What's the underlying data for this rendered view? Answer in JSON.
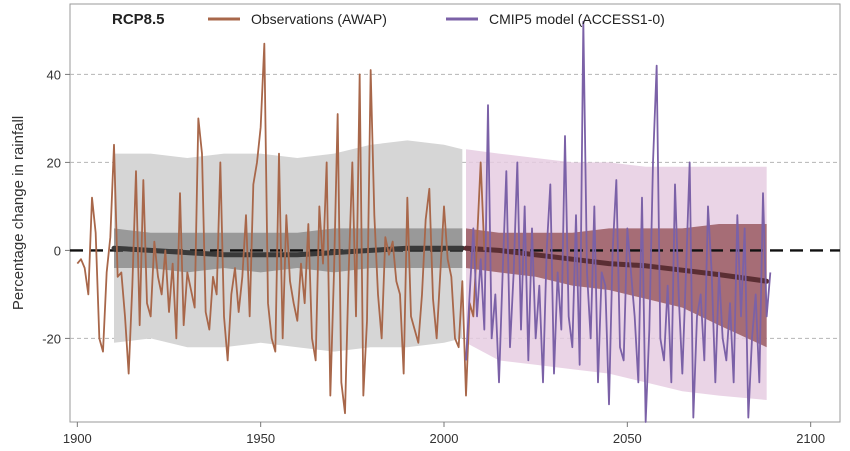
{
  "chart_data": {
    "type": "line",
    "title": "RCP8.5",
    "xlabel": "",
    "ylabel": "Percentage change in rainfall",
    "xlim": [
      1898,
      2108
    ],
    "ylim": [
      -39,
      56
    ],
    "x_ticks": [
      1900,
      1950,
      2000,
      2050,
      2100
    ],
    "y_ticks": [
      40,
      20,
      0,
      -20
    ],
    "y_tick_labels": [
      "40",
      "20",
      "0",
      "-20"
    ],
    "grid": "horizontal dashed at 40, 20, -20",
    "zero_line": "black dashed at 0",
    "legend": {
      "placement": "top",
      "entries": [
        "Observations (AWAP)",
        "CMIP5 model (ACCESS1-0)"
      ]
    },
    "colors": {
      "observations": "#a8674a",
      "model": "#7b61a7",
      "hist_band_outer": "#d6d6d6",
      "hist_band_inner": "#8e8e8e",
      "hist_median": "#3a3a3a",
      "proj_band_outer": "#e6cde2",
      "proj_band_inner": "#9a5a62",
      "proj_median": "#5b2e33"
    },
    "series": [
      {
        "name": "Observations (AWAP)",
        "x": [
          1900,
          1901,
          1902,
          1903,
          1904,
          1905,
          1906,
          1907,
          1908,
          1909,
          1910,
          1911,
          1912,
          1913,
          1914,
          1915,
          1916,
          1917,
          1918,
          1919,
          1920,
          1921,
          1922,
          1923,
          1924,
          1925,
          1926,
          1927,
          1928,
          1929,
          1930,
          1931,
          1932,
          1933,
          1934,
          1935,
          1936,
          1937,
          1938,
          1939,
          1940,
          1941,
          1942,
          1943,
          1944,
          1945,
          1946,
          1947,
          1948,
          1949,
          1950,
          1951,
          1952,
          1953,
          1954,
          1955,
          1956,
          1957,
          1958,
          1959,
          1960,
          1961,
          1962,
          1963,
          1964,
          1965,
          1966,
          1967,
          1968,
          1969,
          1970,
          1971,
          1972,
          1973,
          1974,
          1975,
          1976,
          1977,
          1978,
          1979,
          1980,
          1981,
          1982,
          1983,
          1984,
          1985,
          1986,
          1987,
          1988,
          1989,
          1990,
          1991,
          1992,
          1993,
          1994,
          1995,
          1996,
          1997,
          1998,
          1999,
          2000,
          2001,
          2002,
          2003,
          2004,
          2005,
          2006,
          2007,
          2008,
          2009,
          2010,
          2011
        ],
        "values": [
          -3,
          -2,
          -4,
          -10,
          12,
          4,
          -20,
          -23,
          -5,
          3,
          24,
          -6,
          -5,
          -15,
          -28,
          -8,
          18,
          -17,
          16,
          -12,
          -15,
          2,
          -6,
          -10,
          0,
          -14,
          -3,
          -20,
          13,
          -17,
          -5,
          -9,
          -13,
          30,
          22,
          -14,
          -18,
          -6,
          -10,
          20,
          -15,
          -25,
          -10,
          -4,
          -14,
          -6,
          8,
          -15,
          15,
          20,
          28,
          47,
          -12,
          -20,
          -23,
          22,
          -20,
          8,
          -7,
          -12,
          -16,
          -3,
          -12,
          6,
          -20,
          -25,
          10,
          -3,
          20,
          -33,
          -5,
          31,
          -30,
          -37,
          -5,
          20,
          -15,
          40,
          -33,
          -16,
          41,
          8,
          -10,
          -20,
          3,
          -1,
          2,
          -7,
          -10,
          -28,
          12,
          -15,
          -18,
          -21,
          -10,
          7,
          14,
          -11,
          -20,
          -5,
          10,
          -2,
          -6,
          -20,
          -22,
          -7,
          -33,
          -12,
          -15,
          2,
          20,
          0
        ]
      },
      {
        "name": "CMIP5 model (ACCESS1-0)",
        "x": [
          2006,
          2007,
          2008,
          2009,
          2010,
          2011,
          2012,
          2013,
          2014,
          2015,
          2016,
          2017,
          2018,
          2019,
          2020,
          2021,
          2022,
          2023,
          2024,
          2025,
          2026,
          2027,
          2028,
          2029,
          2030,
          2031,
          2032,
          2033,
          2034,
          2035,
          2036,
          2037,
          2038,
          2039,
          2040,
          2041,
          2042,
          2043,
          2044,
          2045,
          2046,
          2047,
          2048,
          2049,
          2050,
          2051,
          2052,
          2053,
          2054,
          2055,
          2056,
          2057,
          2058,
          2059,
          2060,
          2061,
          2062,
          2063,
          2064,
          2065,
          2066,
          2067,
          2068,
          2069,
          2070,
          2071,
          2072,
          2073,
          2074,
          2075,
          2076,
          2077,
          2078,
          2079,
          2080,
          2081,
          2082,
          2083,
          2084,
          2085,
          2086,
          2087,
          2088,
          2089
        ],
        "values": [
          -25,
          -10,
          5,
          -15,
          -2,
          -18,
          33,
          -20,
          -10,
          -30,
          -5,
          18,
          -22,
          -5,
          20,
          -18,
          10,
          -25,
          5,
          -20,
          -8,
          -30,
          0,
          15,
          -28,
          -5,
          -18,
          26,
          -15,
          -22,
          8,
          -26,
          52,
          -5,
          -20,
          10,
          -30,
          -5,
          -8,
          -35,
          0,
          16,
          -22,
          -25,
          5,
          -5,
          -15,
          -30,
          12,
          -39,
          -18,
          20,
          42,
          -20,
          -25,
          -8,
          -30,
          15,
          -10,
          -28,
          -5,
          20,
          -38,
          -15,
          -10,
          -25,
          10,
          -5,
          -30,
          -5,
          -20,
          -25,
          -12,
          -30,
          8,
          -15,
          5,
          -38,
          -20,
          -10,
          -30,
          13,
          -15,
          -5
        ]
      }
    ],
    "bands": [
      {
        "period": "historical",
        "x": [
          1910,
          1920,
          1930,
          1940,
          1950,
          1960,
          1970,
          1980,
          1990,
          2000,
          2005
        ],
        "outer_upper": [
          22,
          22,
          21,
          22,
          22,
          21,
          22,
          24,
          25,
          24,
          23
        ],
        "outer_lower": [
          -21,
          -20,
          -22,
          -22,
          -21,
          -22,
          -23,
          -22,
          -22,
          -21,
          -20
        ],
        "inner_upper": [
          5,
          4,
          4,
          4,
          4,
          4,
          5,
          5,
          5,
          5,
          5
        ],
        "inner_lower": [
          -4,
          -4,
          -5,
          -4,
          -5,
          -4,
          -5,
          -4,
          -4,
          -4,
          -4
        ],
        "median": [
          0.5,
          0,
          -0.5,
          -1,
          -1,
          -1,
          -0.5,
          0,
          0.5,
          0.5,
          0.5
        ]
      },
      {
        "period": "projection",
        "x": [
          2006,
          2015,
          2025,
          2035,
          2045,
          2055,
          2065,
          2075,
          2088
        ],
        "outer_upper": [
          23,
          22,
          21,
          20,
          20,
          19,
          19,
          19,
          19
        ],
        "outer_lower": [
          -21,
          -25,
          -26,
          -27,
          -28,
          -30,
          -32,
          -33,
          -34
        ],
        "inner_upper": [
          5,
          4,
          4,
          4,
          5,
          5,
          5,
          6,
          6
        ],
        "inner_lower": [
          -4,
          -5,
          -6,
          -8,
          -9,
          -11,
          -13,
          -17,
          -22
        ],
        "median": [
          0.5,
          0,
          -1,
          -2,
          -3,
          -3.5,
          -4.5,
          -5.5,
          -7
        ]
      }
    ]
  }
}
